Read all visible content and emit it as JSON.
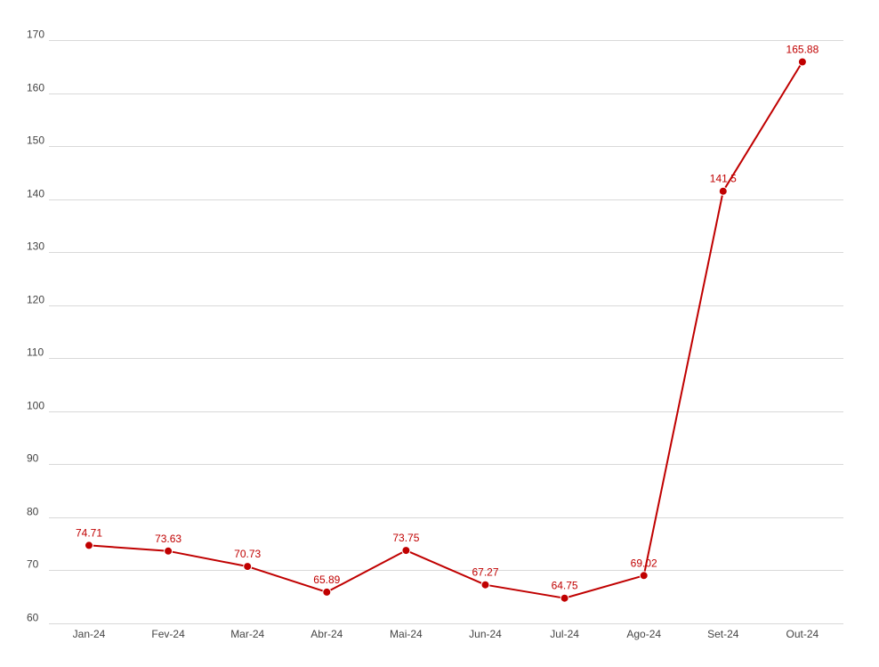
{
  "chart_data": {
    "type": "line",
    "title": "",
    "xlabel": "",
    "ylabel": "",
    "categories": [
      "Jan-24",
      "Fev-24",
      "Mar-24",
      "Abr-24",
      "Mai-24",
      "Jun-24",
      "Jul-24",
      "Ago-24",
      "Set-24",
      "Out-24"
    ],
    "series": [
      {
        "values": [
          74.71,
          73.63,
          70.73,
          65.89,
          73.75,
          67.27,
          64.75,
          69.02,
          141.5,
          165.88
        ],
        "data_labels": [
          "74.71",
          "73.63",
          "70.73",
          "65.89",
          "73.75",
          "67.27",
          "64.75",
          "69.02",
          "141.5",
          "165.88"
        ],
        "color": "#c00000"
      }
    ],
    "ylim": [
      60,
      170
    ],
    "yticks": [
      "60",
      "70",
      "80",
      "90",
      "100",
      "110",
      "120",
      "130",
      "140",
      "150",
      "160",
      "170"
    ],
    "grid": true,
    "legend": "none"
  }
}
